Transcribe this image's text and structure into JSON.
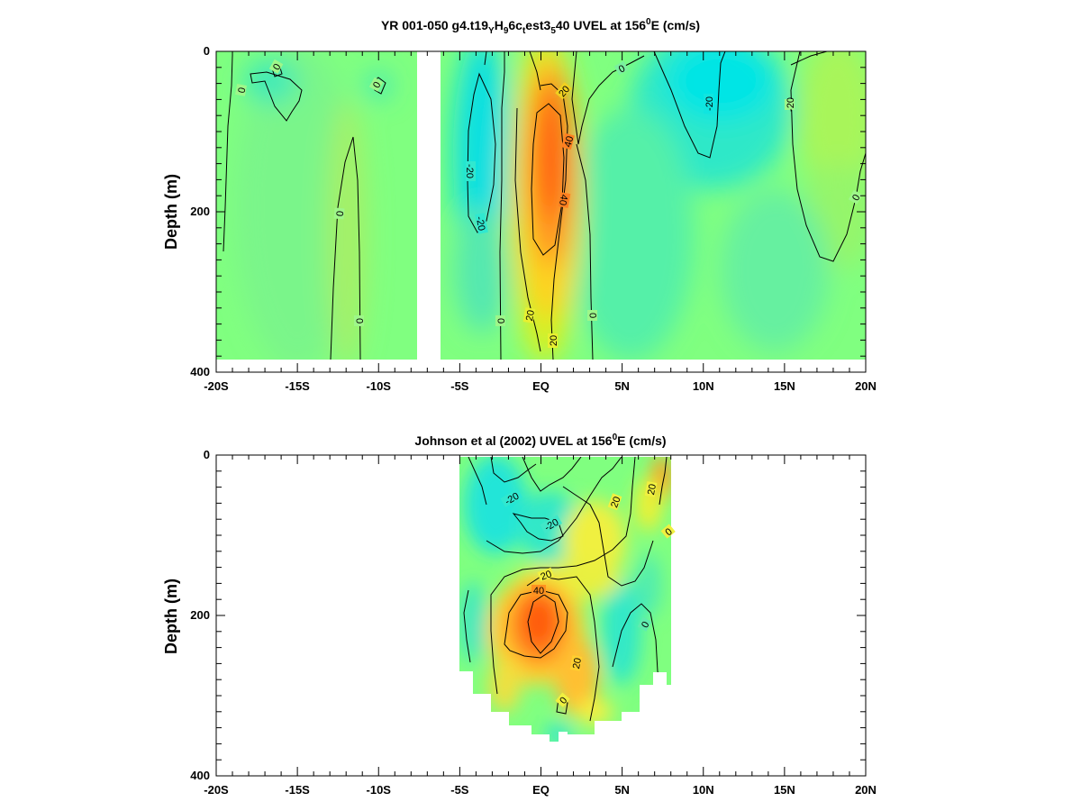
{
  "chart_data": [
    {
      "type": "heatmap",
      "title": {
        "pre": "YR 001-050 g4.t19",
        "s1": "Y",
        "m1": "H",
        "s2": "9",
        "m2": "6c",
        "s3": "t",
        "m3": "est3",
        "s4": "5",
        "m4": "40 UVEL at 156",
        "sup": "0",
        "post": "E (cm/s)"
      },
      "ylabel": "Depth (m)",
      "x_ticks": [
        "-20S",
        "-15S",
        "-10S",
        "-5S",
        "EQ",
        "5N",
        "10N",
        "15N",
        "20N"
      ],
      "y_ticks": [
        "0",
        "200",
        "400"
      ],
      "xlim": [
        -20,
        20
      ],
      "ylim": [
        0,
        400
      ],
      "contour_levels": [
        -20,
        0,
        20,
        40
      ],
      "contour_labels": [
        "-20",
        "-20",
        "-20",
        "-20",
        "0",
        "0",
        "0",
        "0",
        "0",
        "0",
        "0",
        "0",
        "20",
        "20",
        "20",
        "40",
        "40"
      ],
      "colors": {
        "low": "#00e5e5",
        "mid": "#80ff80",
        "high": "#ff5000"
      },
      "features": {
        "undercurrent_core_max": 55,
        "undercurrent_core_lat": 0.5,
        "undercurrent_core_depth": 160
      }
    },
    {
      "type": "heatmap",
      "title": {
        "pre": "Johnson et al (2002) UVEL at 156",
        "sup": "0",
        "post": "E (cm/s)"
      },
      "ylabel": "Depth (m)",
      "x_ticks": [
        "-20S",
        "-15S",
        "-10S",
        "-5S",
        "EQ",
        "5N",
        "10N",
        "15N",
        "20N"
      ],
      "y_ticks": [
        "0",
        "200",
        "400"
      ],
      "xlim": [
        -20,
        20
      ],
      "ylim": [
        0,
        400
      ],
      "data_lat_range": [
        -5,
        8
      ],
      "contour_levels": [
        -20,
        0,
        20,
        40
      ],
      "contour_labels": [
        "-20",
        "-20",
        "0",
        "0",
        "0",
        "0",
        "20",
        "20",
        "20",
        "20",
        "40"
      ],
      "colors": {
        "low": "#00e5e5",
        "mid": "#80ff80",
        "high": "#ff5000"
      },
      "features": {
        "undercurrent_core_max": 50,
        "undercurrent_core_lat": -0.5,
        "undercurrent_core_depth": 200
      }
    }
  ]
}
